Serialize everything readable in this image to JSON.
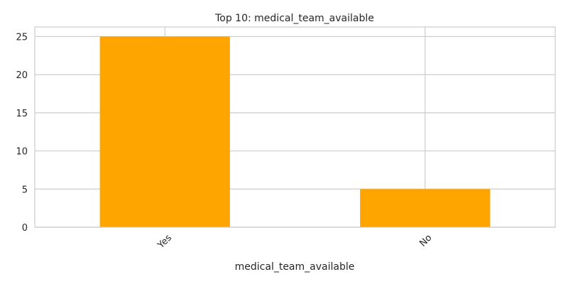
{
  "chart_data": {
    "type": "bar",
    "title": "Top 10: medical_team_available",
    "xlabel": "medical_team_available",
    "ylabel": "",
    "categories": [
      "Yes",
      "No"
    ],
    "values": [
      25,
      5
    ],
    "ylim": [
      0,
      26.25
    ],
    "yticks": [
      0,
      5,
      10,
      15,
      20,
      25
    ],
    "grid": true,
    "legend": "none",
    "bar_color": "#FFA500",
    "grid_color": "#CCCCCC",
    "axes_edge_color": "#CCCCCC"
  }
}
